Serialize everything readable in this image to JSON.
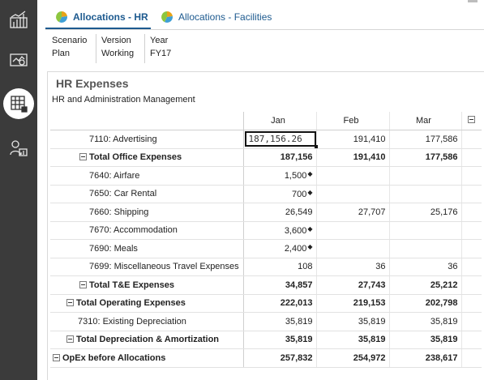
{
  "tabs": [
    {
      "label": "Allocations - HR",
      "active": true
    },
    {
      "label": "Allocations - Facilities",
      "active": false
    }
  ],
  "pov": [
    {
      "dimension": "Scenario",
      "member": "Plan"
    },
    {
      "dimension": "Version",
      "member": "Working"
    },
    {
      "dimension": "Year",
      "member": "FY17"
    }
  ],
  "form": {
    "title": "HR Expenses",
    "subtitle": "HR and Administration Management"
  },
  "columns": [
    "Jan",
    "Feb",
    "Mar"
  ],
  "rows": [
    {
      "label": "7110: Advertising",
      "jan": "187,156.26",
      "feb": "191,410",
      "mar": "177,586"
    },
    {
      "label": "Total Office Expenses",
      "jan": "187,156",
      "feb": "191,410",
      "mar": "177,586"
    },
    {
      "label": "7640: Airfare",
      "jan": "1,500",
      "feb": "",
      "mar": ""
    },
    {
      "label": "7650: Car Rental",
      "jan": "700",
      "feb": "",
      "mar": ""
    },
    {
      "label": "7660: Shipping",
      "jan": "26,549",
      "feb": "27,707",
      "mar": "25,176"
    },
    {
      "label": "7670: Accommodation",
      "jan": "3,600",
      "feb": "",
      "mar": ""
    },
    {
      "label": "7690: Meals",
      "jan": "2,400",
      "feb": "",
      "mar": ""
    },
    {
      "label": "7699: Miscellaneous Travel Expenses",
      "jan": "108",
      "feb": "36",
      "mar": "36"
    },
    {
      "label": "Total T&E Expenses",
      "jan": "34,857",
      "feb": "27,743",
      "mar": "25,212"
    },
    {
      "label": "Total Operating Expenses",
      "jan": "222,013",
      "feb": "219,153",
      "mar": "202,798"
    },
    {
      "label": "7310: Existing Depreciation",
      "jan": "35,819",
      "feb": "35,819",
      "mar": "35,819"
    },
    {
      "label": "Total Depreciation & Amortization",
      "jan": "35,819",
      "feb": "35,819",
      "mar": "35,819"
    },
    {
      "label": "OpEx before Allocations",
      "jan": "257,832",
      "feb": "254,972",
      "mar": "238,617"
    }
  ],
  "colors": {
    "rail": "#3b3b3b",
    "accent": "#1d5a8f"
  }
}
